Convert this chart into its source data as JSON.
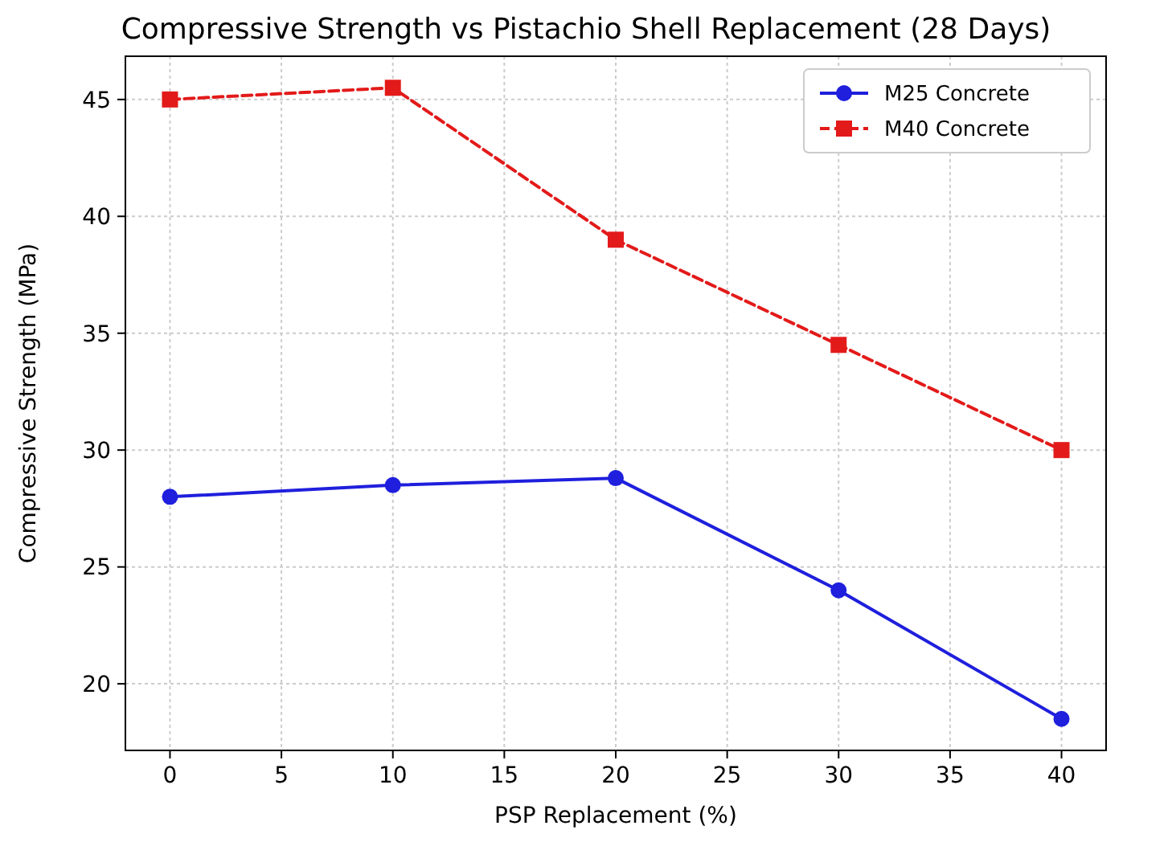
{
  "chart_data": {
    "type": "line",
    "title": "Compressive Strength vs Pistachio Shell Replacement (28 Days)",
    "xlabel": "PSP Replacement (%)",
    "ylabel": "Compressive Strength (MPa)",
    "x": [
      0,
      10,
      20,
      30,
      40
    ],
    "series": [
      {
        "name": "M25 Concrete",
        "color": "#1f1fdd",
        "values": [
          28,
          28.5,
          28.8,
          24,
          18.5
        ],
        "marker": "circle",
        "line_style": "solid"
      },
      {
        "name": "M40 Concrete",
        "color": "#e31a1a",
        "values": [
          45,
          45.5,
          39,
          34.5,
          30
        ],
        "marker": "square",
        "line_style": "dashed"
      }
    ],
    "xlim": [
      -2,
      42
    ],
    "xticks": [
      0,
      5,
      10,
      15,
      20,
      25,
      30,
      35,
      40
    ],
    "ylim": [
      17.15,
      46.85
    ],
    "yticks": [
      20,
      25,
      30,
      35,
      40,
      45
    ],
    "grid": true,
    "legend": "top right"
  }
}
